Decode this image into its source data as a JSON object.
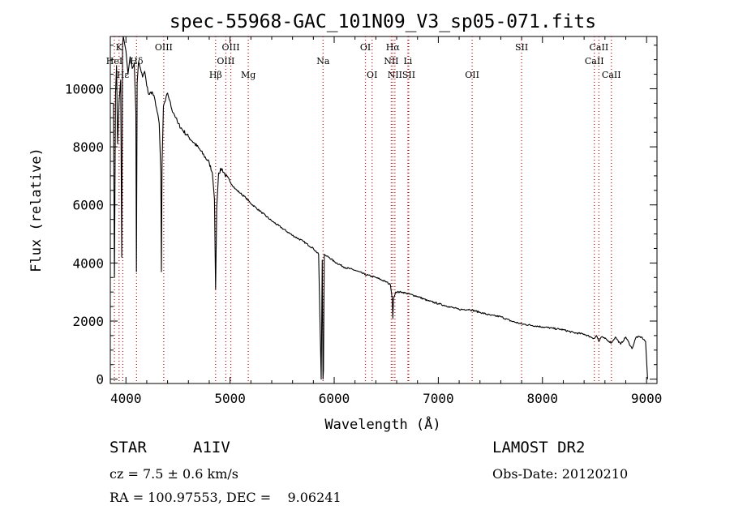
{
  "chart_data": {
    "type": "line",
    "title": "spec-55968-GAC_101N09_V3_sp05-071.fits",
    "xlabel": "Wavelength (Å)",
    "ylabel": "Flux (relative)",
    "xlim": [
      3850,
      9100
    ],
    "ylim": [
      -150,
      11800
    ],
    "x_ticks": [
      4000,
      5000,
      6000,
      7000,
      8000,
      9000
    ],
    "y_ticks": [
      0,
      2000,
      4000,
      6000,
      8000,
      10000
    ],
    "grid": false,
    "line_color": "#000000",
    "marker_color": "#cc0000",
    "series": [
      {
        "x": [
          3880,
          3890,
          3900,
          3910,
          3920,
          3935,
          3950,
          3960,
          3968,
          3975,
          3985,
          4000,
          4020,
          4040,
          4060,
          4080,
          4095,
          4101,
          4108,
          4120,
          4140,
          4160,
          4180,
          4200,
          4220,
          4250,
          4280,
          4300,
          4320,
          4335,
          4341,
          4347,
          4360,
          4380,
          4400,
          4420,
          4440,
          4460,
          4480,
          4500,
          4550,
          4600,
          4650,
          4700,
          4750,
          4800,
          4830,
          4850,
          4861,
          4872,
          4890,
          4920,
          4950,
          5000,
          5050,
          5100,
          5150,
          5200,
          5250,
          5300,
          5400,
          5500,
          5600,
          5700,
          5800,
          5850,
          5875,
          5885,
          5892,
          5897,
          5905,
          5920,
          5950,
          6000,
          6100,
          6200,
          6300,
          6400,
          6500,
          6540,
          6556,
          6563,
          6570,
          6590,
          6650,
          6700,
          6800,
          6900,
          7000,
          7100,
          7200,
          7300,
          7400,
          7500,
          7600,
          7700,
          7800,
          7900,
          8000,
          8100,
          8200,
          8300,
          8400,
          8498,
          8520,
          8542,
          8565,
          8600,
          8662,
          8700,
          8750,
          8800,
          8860,
          8900,
          8950,
          8990,
          9010
        ],
        "y": [
          9500,
          3500,
          9800,
          10800,
          8100,
          9600,
          10300,
          4200,
          11500,
          11800,
          11600,
          11300,
          10500,
          11100,
          10700,
          10900,
          9200,
          3700,
          10200,
          10900,
          10700,
          10400,
          10600,
          10100,
          9800,
          9900,
          9600,
          9200,
          8800,
          7100,
          3700,
          7400,
          9400,
          9600,
          9850,
          9600,
          9300,
          9150,
          9000,
          8800,
          8550,
          8350,
          8150,
          7950,
          7700,
          7450,
          7100,
          6200,
          3100,
          5900,
          7100,
          7250,
          7050,
          6800,
          6550,
          6400,
          6250,
          6050,
          5900,
          5750,
          5450,
          5200,
          4950,
          4750,
          4500,
          4300,
          0,
          4100,
          0,
          300,
          4300,
          4250,
          4200,
          4050,
          3850,
          3750,
          3600,
          3500,
          3350,
          3250,
          2800,
          2100,
          2800,
          3000,
          3000,
          2950,
          2850,
          2700,
          2600,
          2500,
          2400,
          2400,
          2300,
          2200,
          2150,
          2000,
          1900,
          1850,
          1800,
          1750,
          1700,
          1600,
          1550,
          1400,
          1500,
          1300,
          1450,
          1400,
          1250,
          1450,
          1200,
          1450,
          1050,
          1450,
          1450,
          1300,
          0
        ]
      }
    ],
    "lines": [
      {
        "label": "K",
        "wavelength": 3934,
        "row": 1
      },
      {
        "label": "HeI",
        "wavelength": 3889,
        "row": 2
      },
      {
        "label": "Hε",
        "wavelength": 3970,
        "row": 3
      },
      {
        "label": "Hδ",
        "wavelength": 4102,
        "row": 2
      },
      {
        "label": "OIII",
        "wavelength": 4363,
        "row": 1
      },
      {
        "label": "Hβ",
        "wavelength": 4861,
        "row": 3
      },
      {
        "label": "OIII",
        "wavelength": 4959,
        "row": 2
      },
      {
        "label": "OIII",
        "wavelength": 5007,
        "row": 1
      },
      {
        "label": "Mg",
        "wavelength": 5175,
        "row": 3
      },
      {
        "label": "Na",
        "wavelength": 5893,
        "row": 2
      },
      {
        "label": "OI",
        "wavelength": 6300,
        "row": 1
      },
      {
        "label": "OI",
        "wavelength": 6364,
        "row": 3
      },
      {
        "label": "NII",
        "wavelength": 6548,
        "row": 2
      },
      {
        "label": "Hα",
        "wavelength": 6563,
        "row": 1
      },
      {
        "label": "NII",
        "wavelength": 6583,
        "row": 3
      },
      {
        "label": "SII",
        "wavelength": 6716,
        "row": 3
      },
      {
        "label": "Li",
        "wavelength": 6708,
        "row": 2
      },
      {
        "label": "OII",
        "wavelength": 7325,
        "row": 3
      },
      {
        "label": "SII",
        "wavelength": 7800,
        "row": 1
      },
      {
        "label": "CaII",
        "wavelength": 8498,
        "row": 2
      },
      {
        "label": "CaII",
        "wavelength": 8542,
        "row": 1
      },
      {
        "label": "CaII",
        "wavelength": 8662,
        "row": 3
      }
    ]
  },
  "info": {
    "object_class": "STAR",
    "subclass": "A1IV",
    "redshift": "cz = 7.5 ± 0.6 km/s",
    "coordinates": "RA = 100.97553, DEC =    9.06241",
    "survey": "LAMOST DR2",
    "obs_date": "Obs-Date: 20120210"
  }
}
